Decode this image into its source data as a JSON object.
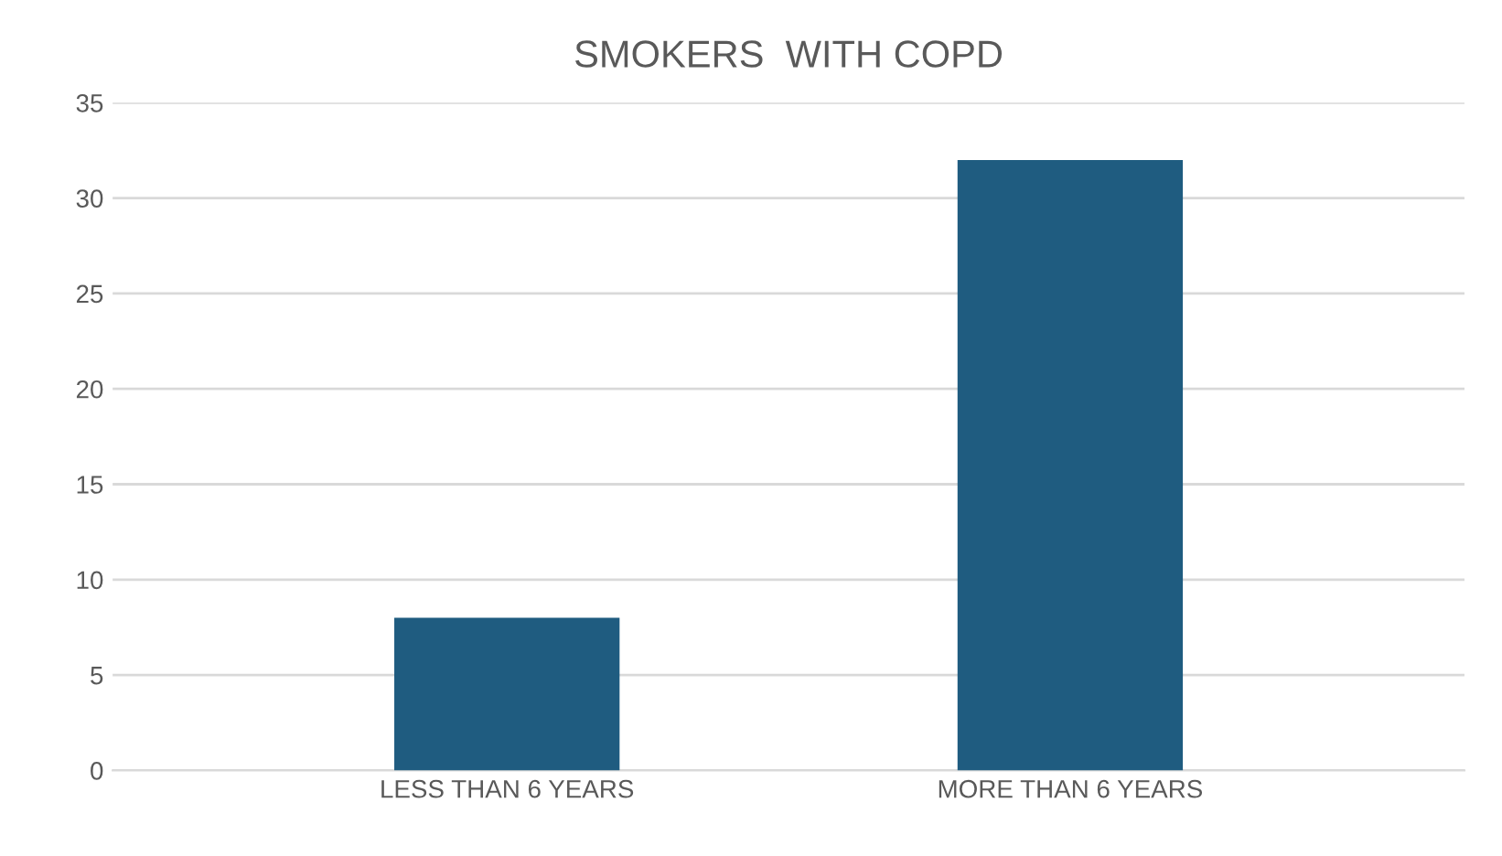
{
  "chart_data": {
    "type": "bar",
    "title": "SMOKERS  WITH COPD",
    "categories": [
      "LESS THAN 6 YEARS",
      "MORE THAN 6 YEARS"
    ],
    "values": [
      8,
      32
    ],
    "color": "#1f5c80",
    "ylim": [
      0,
      35
    ],
    "yticks": [
      0,
      5,
      10,
      15,
      20,
      25,
      30,
      35
    ],
    "grid": "y"
  }
}
